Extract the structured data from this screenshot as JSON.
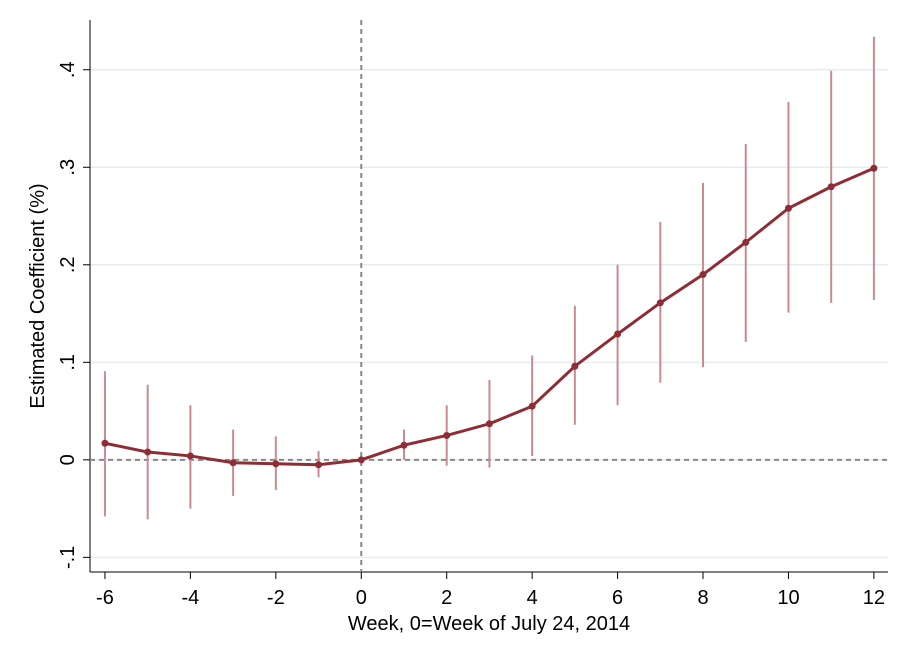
{
  "chart_data": {
    "type": "line",
    "x_label": "Week, 0=Week of July 24, 2014",
    "y_label": "Estimated Coefficient (%)",
    "x": [
      -6,
      -5,
      -4,
      -3,
      -2,
      -1,
      0,
      1,
      2,
      3,
      4,
      5,
      6,
      7,
      8,
      9,
      10,
      11,
      12
    ],
    "series": [
      {
        "color": "#8f2d37",
        "error_color": "#c98c8e",
        "values": [
          0.017,
          0.008,
          0.004,
          -0.003,
          -0.004,
          -0.005,
          0,
          0.015,
          0.025,
          0.037,
          0.055,
          0.096,
          0.129,
          0.161,
          0.19,
          0.223,
          0.258,
          0.28,
          0.299
        ],
        "lower": [
          -0.058,
          -0.061,
          -0.05,
          -0.037,
          -0.031,
          -0.018,
          null,
          0.0,
          -0.006,
          -0.008,
          0.004,
          0.036,
          0.056,
          0.079,
          0.095,
          0.121,
          0.151,
          0.161,
          0.164
        ],
        "upper": [
          0.091,
          0.077,
          0.056,
          0.031,
          0.024,
          0.009,
          null,
          0.031,
          0.056,
          0.082,
          0.107,
          0.158,
          0.2,
          0.244,
          0.284,
          0.324,
          0.367,
          0.399,
          0.434
        ]
      }
    ],
    "xlim": [
      -6.35,
      12.33
    ],
    "ylim": [
      -0.115,
      0.451
    ],
    "xticks": [
      -6,
      -4,
      -2,
      0,
      2,
      4,
      6,
      8,
      10,
      12
    ],
    "yticks": [
      {
        "value": -0.1,
        "label": "-.1"
      },
      0,
      {
        "value": 0.1,
        "label": ".1"
      },
      {
        "value": 0.2,
        "label": ".2"
      },
      {
        "value": 0.3,
        "label": ".3"
      },
      {
        "value": 0.4,
        "label": ".4"
      }
    ],
    "grid": true,
    "reference_lines": {
      "x": 0,
      "y": 0
    }
  }
}
